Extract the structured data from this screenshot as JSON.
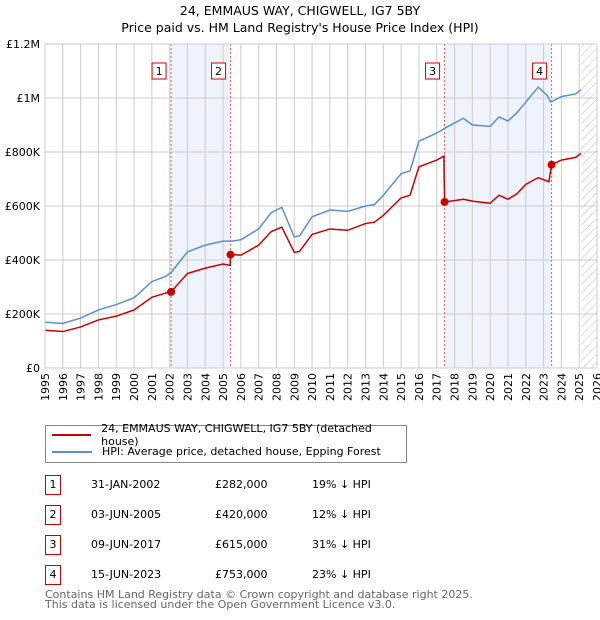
{
  "header": {
    "title": "24, EMMAUS WAY, CHIGWELL, IG7 5BY",
    "subtitle": "Price paid vs. HM Land Registry's House Price Index (HPI)"
  },
  "chart_data": {
    "type": "line",
    "title": "24, EMMAUS WAY, CHIGWELL, IG7 5BY",
    "xlim": [
      1995,
      2026
    ],
    "ylim": [
      0,
      1200000
    ],
    "yticks": [
      {
        "v": 0,
        "label": "£0"
      },
      {
        "v": 200000,
        "label": "£200K"
      },
      {
        "v": 400000,
        "label": "£400K"
      },
      {
        "v": 600000,
        "label": "£600K"
      },
      {
        "v": 800000,
        "label": "£800K"
      },
      {
        "v": 1000000,
        "label": "£1M"
      },
      {
        "v": 1200000,
        "label": "£1.2M"
      }
    ],
    "xticks": [
      "1995",
      "1996",
      "1997",
      "1998",
      "1999",
      "2000",
      "2001",
      "2002",
      "2003",
      "2004",
      "2005",
      "2006",
      "2007",
      "2008",
      "2009",
      "2010",
      "2011",
      "2012",
      "2013",
      "2014",
      "2015",
      "2016",
      "2017",
      "2018",
      "2019",
      "2020",
      "2021",
      "2022",
      "2023",
      "2024",
      "2025",
      "2026"
    ],
    "shaded": [
      [
        2002.08,
        2005.42
      ],
      [
        2017.44,
        2023.45
      ]
    ],
    "forecast_start": 2025.1,
    "series": [
      {
        "name": "HPI: Average price, detached house, Epping Forest",
        "color": "#5b8fd4",
        "x": [
          1995,
          1996,
          1997,
          1998,
          1999,
          2000,
          2001,
          2001.8,
          2002.1,
          2003,
          2004,
          2005,
          2005.5,
          2006,
          2007,
          2007.7,
          2008.3,
          2009,
          2009.3,
          2010,
          2011,
          2012,
          2013,
          2013.5,
          2014,
          2015,
          2015.5,
          2016,
          2017,
          2017.5,
          2018.5,
          2019,
          2020,
          2020.5,
          2021,
          2021.5,
          2022,
          2022.7,
          2023.2,
          2023.4,
          2024,
          2024.8,
          2025.1
        ],
        "y": [
          170000,
          165000,
          185000,
          215000,
          235000,
          260000,
          320000,
          340000,
          355000,
          430000,
          455000,
          470000,
          470000,
          475000,
          515000,
          575000,
          595000,
          485000,
          490000,
          560000,
          585000,
          580000,
          600000,
          605000,
          640000,
          720000,
          730000,
          840000,
          870000,
          890000,
          925000,
          900000,
          895000,
          930000,
          915000,
          945000,
          985000,
          1040000,
          1010000,
          985000,
          1005000,
          1015000,
          1030000
        ]
      },
      {
        "name": "24, EMMAUS WAY, CHIGWELL, IG7 5BY (detached house)",
        "color": "#cc0000",
        "x": [
          1995,
          1996,
          1997,
          1998,
          1999,
          2000,
          2001,
          2001.8,
          2002.08,
          2003,
          2004,
          2005,
          2005.4,
          2005.42,
          2006,
          2007,
          2007.7,
          2008.3,
          2009,
          2009.3,
          2010,
          2011,
          2012,
          2013,
          2013.5,
          2014,
          2015,
          2015.5,
          2016,
          2017,
          2017.4,
          2017.44,
          2018.5,
          2019,
          2020,
          2020.5,
          2021,
          2021.5,
          2022,
          2022.7,
          2023.3,
          2023.45,
          2024,
          2024.8,
          2025.1
        ],
        "y": [
          140000,
          135000,
          152000,
          178000,
          192000,
          215000,
          262000,
          278000,
          282000,
          350000,
          370000,
          385000,
          380000,
          420000,
          418000,
          455000,
          505000,
          522000,
          428000,
          432000,
          495000,
          515000,
          510000,
          535000,
          540000,
          565000,
          630000,
          640000,
          745000,
          770000,
          785000,
          615000,
          625000,
          618000,
          610000,
          640000,
          625000,
          645000,
          680000,
          705000,
          690000,
          753000,
          770000,
          780000,
          795000
        ]
      }
    ],
    "sales": [
      {
        "n": "1",
        "x": 2002.08,
        "y": 282000
      },
      {
        "n": "2",
        "x": 2005.42,
        "y": 420000
      },
      {
        "n": "3",
        "x": 2017.44,
        "y": 615000
      },
      {
        "n": "4",
        "x": 2023.45,
        "y": 753000
      }
    ]
  },
  "legend": {
    "property": "24, EMMAUS WAY, CHIGWELL, IG7 5BY (detached house)",
    "hpi": "HPI: Average price, detached house, Epping Forest"
  },
  "transactions": [
    {
      "n": "1",
      "date": "31-JAN-2002",
      "price": "£282,000",
      "diff": "19% ↓ HPI"
    },
    {
      "n": "2",
      "date": "03-JUN-2005",
      "price": "£420,000",
      "diff": "12% ↓ HPI"
    },
    {
      "n": "3",
      "date": "09-JUN-2017",
      "price": "£615,000",
      "diff": "31% ↓ HPI"
    },
    {
      "n": "4",
      "date": "15-JUN-2023",
      "price": "£753,000",
      "diff": "23% ↓ HPI"
    }
  ],
  "footer": {
    "line1": "Contains HM Land Registry data © Crown copyright and database right 2025.",
    "line2": "This data is licensed under the Open Government Licence v3.0."
  }
}
